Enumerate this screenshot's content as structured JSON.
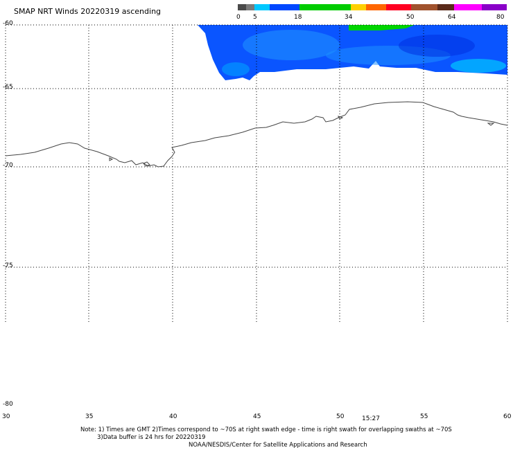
{
  "title": "SMAP NRT Winds 20220319 ascending",
  "colorbar": {
    "ticks": [
      "0",
      "5",
      "18",
      "34",
      "50",
      "64",
      "80"
    ],
    "colors": {
      "gray": "#4a4a4a",
      "light_gray": "#7a7a7a",
      "cyan": "#00c8ff",
      "blue": "#0047ff",
      "green": "#00cc00",
      "yellow": "#ffd000",
      "orange": "#ff6600",
      "red": "#ff0022",
      "brown": "#a0522d",
      "dark_brown": "#5a2a1a",
      "magenta": "#ff00ff",
      "purple": "#8a00c8"
    }
  },
  "map": {
    "lat_labels": [
      "-60",
      "-65",
      "-70",
      "-75",
      "-80"
    ],
    "lon_labels": [
      "30",
      "35",
      "40",
      "45",
      "50",
      "55",
      "60"
    ],
    "lat_range": [
      -80,
      -60
    ],
    "lon_range": [
      30,
      60
    ],
    "swath_colors": {
      "main": "#0a55ff",
      "light": "#1e90ff",
      "high": "#00d400",
      "dark": "#0030e0"
    }
  },
  "time_label": "15:27",
  "notes": {
    "line1": "Note: 1) Times are GMT 2)Times correspond to ~70S at right swath edge - time is right swath for overlapping swaths at ~70S",
    "line2": "3)Data buffer is 24 hrs for 20220319",
    "line3": "NOAA/NESDIS/Center for Satellite Applications and Research"
  }
}
